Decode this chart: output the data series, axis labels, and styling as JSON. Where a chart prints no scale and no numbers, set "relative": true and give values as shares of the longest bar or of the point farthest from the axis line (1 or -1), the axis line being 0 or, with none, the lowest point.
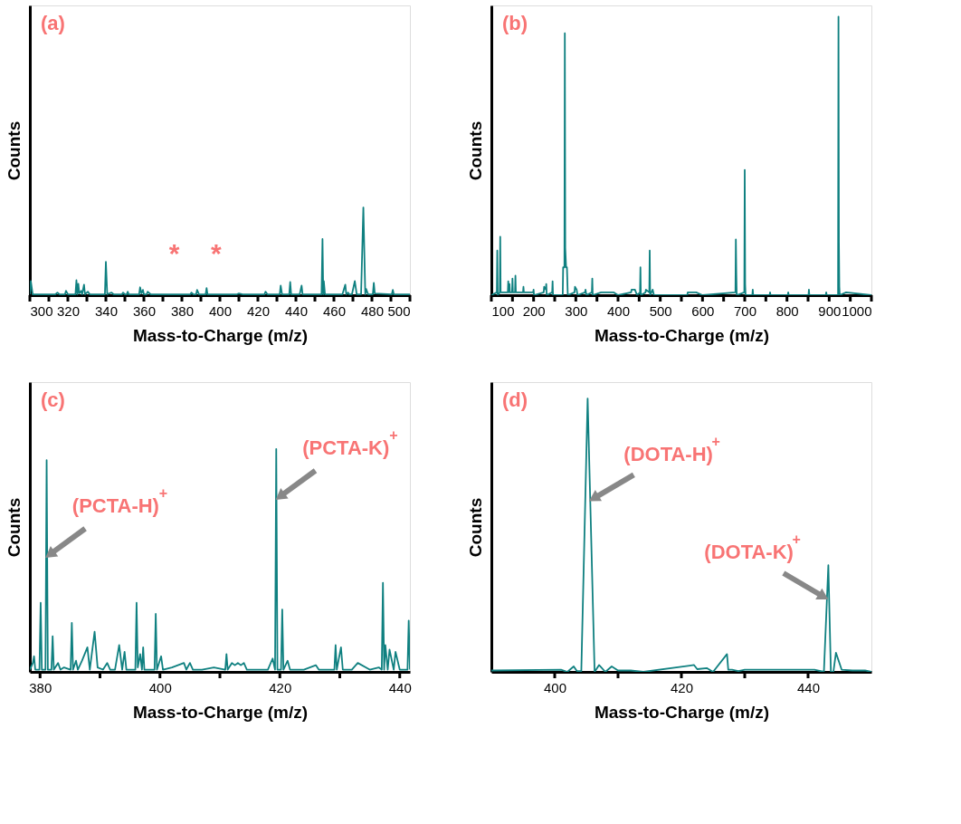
{
  "chart_data": [
    {
      "type": "line",
      "title": "(a)",
      "xlabel": "Mass-to-Charge (m/z)",
      "ylabel": "Counts",
      "relative": true,
      "tick_labels": "x",
      "xlim": [
        300,
        500
      ],
      "xticks": [
        300,
        {
          "value": 310,
          "label": null
        },
        320,
        {
          "value": 330,
          "label": null
        },
        340,
        {
          "value": 350,
          "label": null
        },
        360,
        {
          "value": 370,
          "label": null
        },
        380,
        {
          "value": 390,
          "label": null
        },
        400,
        {
          "value": 410,
          "label": null
        },
        420,
        {
          "value": 430,
          "label": null
        },
        440,
        {
          "value": 450,
          "label": null
        },
        460,
        {
          "value": 470,
          "label": null
        },
        480,
        {
          "value": 490,
          "label": null
        },
        500
      ],
      "annotations": [
        "*",
        "*"
      ],
      "series": [
        {
          "color": "#0f8080",
          "x": [
            300,
            300.5,
            301.5,
            313.5,
            314.5,
            315.5,
            318.5,
            319,
            320,
            324,
            324.5,
            325,
            325.5,
            326,
            327,
            327.5,
            328.5,
            329,
            330.5,
            331.5,
            339.5,
            340,
            340.7,
            343,
            344,
            348.5,
            349,
            350,
            351,
            351.5,
            352,
            357.5,
            358,
            358.7,
            359.5,
            360,
            361.5,
            362,
            363.5,
            384.5,
            385,
            386,
            387.5,
            388,
            389,
            392.5,
            393,
            393.5,
            409,
            410,
            412,
            423.5,
            424,
            425,
            431.5,
            432,
            432.7,
            436.5,
            437,
            437.5,
            442,
            443,
            443.5,
            453.5,
            454,
            454.4,
            454.7,
            455.3,
            464.5,
            466,
            466.5,
            467.5,
            468,
            469.5,
            471,
            472,
            474.3,
            475.5,
            476.5,
            477,
            478,
            480.5,
            481,
            481.5,
            490.5,
            491,
            491.5,
            500
          ],
          "values": [
            0.01,
            0.16,
            0.01,
            0.01,
            0.03,
            0.01,
            0.01,
            0.05,
            0.01,
            0.01,
            0.17,
            0.01,
            0.13,
            0.02,
            0.05,
            0.01,
            0.12,
            0.01,
            0.04,
            0.01,
            0.01,
            0.38,
            0.01,
            0.03,
            0.01,
            0.01,
            0.03,
            0.01,
            0.01,
            0.04,
            0.01,
            0.01,
            0.09,
            0.02,
            0.06,
            0.01,
            0.01,
            0.04,
            0.01,
            0.01,
            0.03,
            0.01,
            0.01,
            0.06,
            0.01,
            0.01,
            0.08,
            0.01,
            0.01,
            0.02,
            0.01,
            0.01,
            0.04,
            0.01,
            0.01,
            0.11,
            0.01,
            0.01,
            0.15,
            0.01,
            0.01,
            0.11,
            0.01,
            0.01,
            0.64,
            0.01,
            0.16,
            0.01,
            0.01,
            0.12,
            0.01,
            0.03,
            0.01,
            0.01,
            0.16,
            0.01,
            0.01,
            1.0,
            0.01,
            0.07,
            0.01,
            0.01,
            0.14,
            0.02,
            0.01,
            0.06,
            0.01,
            0.01
          ]
        }
      ]
    },
    {
      "type": "line",
      "title": "(b)",
      "xlabel": "Mass-to-Charge (m/z)",
      "ylabel": "Counts",
      "relative": true,
      "tick_labels": "x",
      "xlim": [
        100,
        1000
      ],
      "xticks": [
        100,
        {
          "value": 150,
          "label": null
        },
        200,
        {
          "value": 250,
          "label": null
        },
        300,
        {
          "value": 350,
          "label": null
        },
        400,
        {
          "value": 450,
          "label": null
        },
        500,
        {
          "value": 550,
          "label": null
        },
        600,
        {
          "value": 650,
          "label": null
        },
        700,
        {
          "value": 750,
          "label": null
        },
        800,
        {
          "value": 850,
          "label": null
        },
        900,
        {
          "value": 950,
          "label": null
        },
        1000
      ],
      "series": [
        {
          "color": "#0f8080",
          "x": [
            100,
            113,
            114,
            115,
            120,
            121,
            122,
            139,
            140,
            141,
            143,
            144,
            149,
            150,
            151,
            156,
            157,
            158,
            175,
            176,
            177,
            199,
            200,
            201,
            224,
            225,
            229,
            230,
            231,
            244,
            245,
            246,
            269,
            270,
            273,
            274,
            275,
            277,
            279,
            281,
            297,
            298,
            302,
            304,
            322,
            323,
            325,
            338,
            339,
            340,
            360,
            390,
            400,
            431,
            432,
            440,
            445,
            452,
            453,
            454,
            465,
            466,
            474,
            475,
            476,
            482,
            485,
            564,
            565,
            585,
            600,
            678,
            679,
            680,
            681,
            699,
            700,
            701,
            702,
            718,
            719,
            720,
            759,
            760,
            761,
            802,
            803,
            804,
            851,
            852,
            853,
            892,
            893,
            894,
            921,
            922,
            923,
            924,
            925,
            940,
            1000
          ],
          "values": [
            0.0,
            0.01,
            0.16,
            0.0,
            0.01,
            0.21,
            0.01,
            0.01,
            0.05,
            0.01,
            0.04,
            0.01,
            0.01,
            0.06,
            0.01,
            0.01,
            0.07,
            0.01,
            0.01,
            0.03,
            0.01,
            0.01,
            0.02,
            0.0,
            0.01,
            0.03,
            0.02,
            0.04,
            0.0,
            0.01,
            0.05,
            0.0,
            0.0,
            0.1,
            0.1,
            0.94,
            0.17,
            0.1,
            0.1,
            0.0,
            0.01,
            0.03,
            0.02,
            0.0,
            0.01,
            0.02,
            0.0,
            0.01,
            0.06,
            0.0,
            0.01,
            0.01,
            0.0,
            0.01,
            0.02,
            0.02,
            0.0,
            0.01,
            0.1,
            0.0,
            0.01,
            0.02,
            0.01,
            0.16,
            0.0,
            0.02,
            0.0,
            0.0,
            0.01,
            0.01,
            0.0,
            0.01,
            0.2,
            0.08,
            0.0,
            0.01,
            0.45,
            0.04,
            0.0,
            0.0,
            0.02,
            0.0,
            0.0,
            0.01,
            0.0,
            0.0,
            0.01,
            0.0,
            0.0,
            0.02,
            0.0,
            0.0,
            0.01,
            0.0,
            0.0,
            1.0,
            0.19,
            0.03,
            0.0,
            0.01,
            0.0
          ]
        }
      ]
    },
    {
      "type": "line",
      "title": "(c)",
      "xlabel": "Mass-to-Charge (m/z)",
      "ylabel": "Counts",
      "relative": true,
      "tick_labels": "x",
      "xlim": [
        378.3,
        441.7
      ],
      "xticks": [
        380,
        {
          "value": 390,
          "label": null
        },
        400,
        {
          "value": 410,
          "label": null
        },
        420,
        {
          "value": 430,
          "label": null
        },
        440
      ],
      "annotations": [
        {
          "text": "(PCTA-H)$^{+}$",
          "x": 381.3,
          "y": 0.52
        },
        {
          "text": "(PCTA-K)$^{+}$",
          "x": 419.7,
          "y": 0.78
        }
      ],
      "series": [
        {
          "color": "#0f8080",
          "x": [
            378.3,
            378.8,
            379.0,
            379.2,
            379.9,
            380.1,
            380.3,
            380.9,
            381.1,
            381.3,
            381.9,
            382.1,
            382.3,
            383.0,
            383.4,
            384.0,
            385.1,
            385.3,
            385.5,
            386.0,
            386.3,
            387.0,
            387.9,
            388.3,
            389.1,
            389.6,
            390.5,
            391.2,
            391.7,
            392.5,
            393.2,
            393.7,
            394.1,
            394.4,
            395.0,
            395.9,
            396.1,
            396.3,
            396.7,
            397.0,
            397.2,
            397.4,
            398.5,
            399.1,
            399.3,
            399.5,
            400.2,
            400.5,
            402.0,
            404.0,
            404.4,
            405.0,
            405.5,
            407.0,
            409.0,
            410.9,
            411.1,
            411.3,
            412.0,
            412.5,
            413.0,
            413.5,
            414.0,
            414.5,
            416.0,
            418.0,
            418.8,
            419.2,
            419.4,
            419.6,
            420.2,
            420.4,
            420.6,
            421.3,
            421.7,
            422.5,
            424.0,
            426.0,
            426.5,
            428.0,
            429.1,
            429.3,
            429.5,
            430.2,
            430.5,
            432.0,
            433.0,
            435.0,
            436.5,
            437.0,
            437.2,
            437.4,
            437.6,
            438.0,
            438.3,
            439.0,
            439.3,
            440.0,
            441.3,
            441.5,
            441.7
          ],
          "values": [
            0.01,
            0.04,
            0.07,
            0.01,
            0.01,
            0.31,
            0.01,
            0.01,
            0.95,
            0.01,
            0.01,
            0.16,
            0.01,
            0.04,
            0.01,
            0.02,
            0.01,
            0.22,
            0.01,
            0.05,
            0.01,
            0.05,
            0.11,
            0.01,
            0.18,
            0.02,
            0.01,
            0.04,
            0.01,
            0.01,
            0.12,
            0.01,
            0.09,
            0.01,
            0.01,
            0.01,
            0.31,
            0.02,
            0.08,
            0.01,
            0.11,
            0.01,
            0.01,
            0.01,
            0.26,
            0.01,
            0.07,
            0.01,
            0.02,
            0.04,
            0.01,
            0.04,
            0.01,
            0.01,
            0.02,
            0.01,
            0.08,
            0.01,
            0.04,
            0.03,
            0.04,
            0.03,
            0.04,
            0.01,
            0.01,
            0.01,
            0.06,
            0.01,
            1.0,
            0.01,
            0.01,
            0.28,
            0.01,
            0.05,
            0.01,
            0.01,
            0.01,
            0.03,
            0.01,
            0.01,
            0.01,
            0.12,
            0.01,
            0.11,
            0.01,
            0.01,
            0.04,
            0.01,
            0.02,
            0.01,
            0.4,
            0.01,
            0.12,
            0.01,
            0.1,
            0.01,
            0.09,
            0.01,
            0.01,
            0.23,
            0.01
          ]
        }
      ]
    },
    {
      "type": "line",
      "title": "(d)",
      "xlabel": "Mass-to-Charge (m/z)",
      "ylabel": "Counts",
      "relative": true,
      "tick_labels": "x",
      "xlim": [
        390,
        450
      ],
      "xticks": [
        400,
        {
          "value": 410,
          "label": null
        },
        420,
        {
          "value": 430,
          "label": null
        },
        440
      ],
      "annotations": [
        {
          "text": "(DOTA-H)$^{+}$",
          "x": 405.8,
          "y": 0.63
        },
        {
          "text": "(DOTA-K)$^{+}$",
          "x": 442.8,
          "y": 0.27
        }
      ],
      "series": [
        {
          "color": "#0f8080",
          "x": [
            390,
            401,
            402,
            403,
            403.5,
            404.2,
            405.2,
            406.3,
            407,
            408,
            409,
            410,
            412,
            414,
            422,
            422.5,
            424,
            425,
            427.2,
            427.4,
            428,
            429,
            430,
            441,
            442.5,
            443.2,
            443.6,
            444,
            444.4,
            445.3,
            447,
            449,
            450
          ],
          "values": [
            0.005,
            0.008,
            0.0,
            0.02,
            0.003,
            0.003,
            1.0,
            0.0,
            0.025,
            0.0,
            0.02,
            0.005,
            0.005,
            0.0,
            0.025,
            0.01,
            0.014,
            0.0,
            0.065,
            0.008,
            0.008,
            0.003,
            0.008,
            0.008,
            0.0,
            0.39,
            0.0,
            0.0,
            0.07,
            0.008,
            0.005,
            0.005,
            0.0
          ]
        }
      ]
    }
  ]
}
